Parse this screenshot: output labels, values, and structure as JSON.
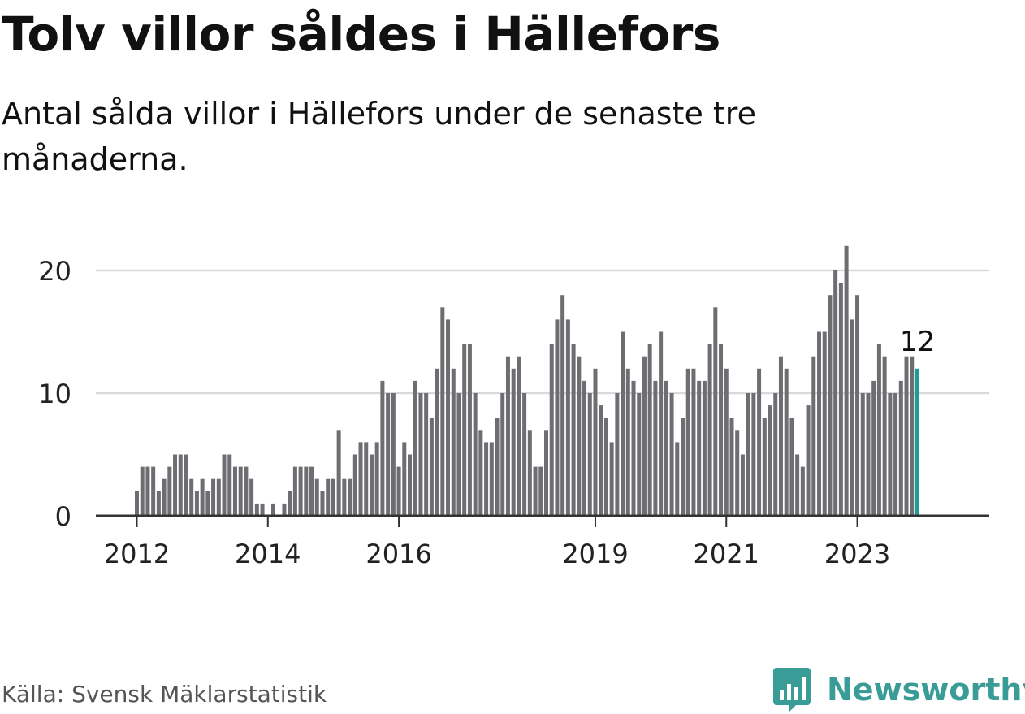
{
  "header": {
    "title": "Tolv villor såldes i Hällefors",
    "subtitle": "Antal sålda villor i Hällefors under de senaste tre månaderna."
  },
  "footer": {
    "source": "Källa: Svensk Mäklarstatistik",
    "brand": "Newsworthy",
    "brand_icon": "newsworthy-logo-icon"
  },
  "colors": {
    "bar": "#6d6d72",
    "highlight": "#1a9e96",
    "grid": "#d9d9d9",
    "axis": "#333333",
    "text": "#111111",
    "brand": "#3a9c97"
  },
  "chart_data": {
    "type": "bar",
    "ylim": [
      0,
      22
    ],
    "yticks": [
      0,
      10,
      20
    ],
    "xticks": [
      {
        "label": "2012",
        "index": 0
      },
      {
        "label": "2014",
        "index": 24
      },
      {
        "label": "2016",
        "index": 48
      },
      {
        "label": "2019",
        "index": 84
      },
      {
        "label": "2021",
        "index": 108
      },
      {
        "label": "2023",
        "index": 132
      }
    ],
    "grid": true,
    "values": [
      2,
      4,
      4,
      4,
      2,
      3,
      4,
      5,
      5,
      5,
      3,
      2,
      3,
      2,
      3,
      3,
      5,
      5,
      4,
      4,
      4,
      3,
      1,
      1,
      0,
      1,
      0,
      1,
      2,
      4,
      4,
      4,
      4,
      3,
      2,
      3,
      3,
      7,
      3,
      3,
      5,
      6,
      6,
      5,
      6,
      11,
      10,
      10,
      4,
      6,
      5,
      11,
      10,
      10,
      8,
      12,
      17,
      16,
      12,
      10,
      14,
      14,
      10,
      7,
      6,
      6,
      8,
      10,
      13,
      12,
      13,
      10,
      7,
      4,
      4,
      7,
      14,
      16,
      18,
      16,
      14,
      13,
      11,
      10,
      12,
      9,
      8,
      6,
      10,
      15,
      12,
      11,
      10,
      13,
      14,
      11,
      15,
      11,
      10,
      6,
      8,
      12,
      12,
      11,
      11,
      14,
      17,
      14,
      12,
      8,
      7,
      5,
      10,
      10,
      12,
      8,
      9,
      10,
      13,
      12,
      8,
      5,
      4,
      9,
      13,
      15,
      15,
      18,
      20,
      19,
      22,
      16,
      18,
      10,
      10,
      11,
      14,
      13,
      10,
      10,
      11,
      13,
      13,
      12
    ],
    "highlight_index": 143,
    "highlight_label": "12"
  }
}
